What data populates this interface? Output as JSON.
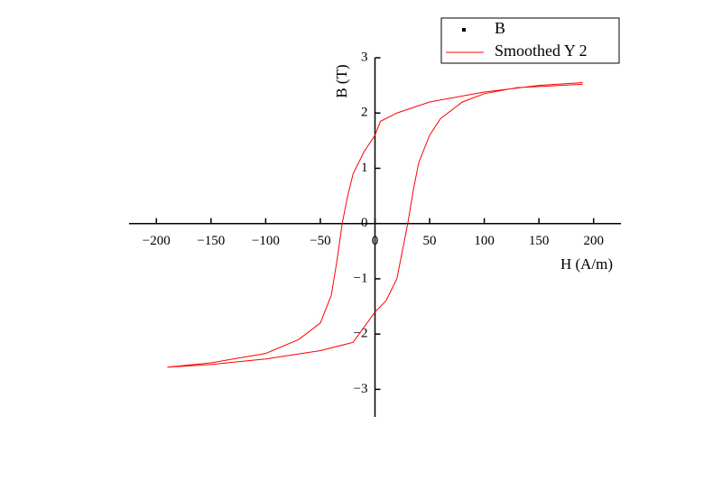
{
  "chart_data": {
    "type": "line",
    "x_label": "H (A/m)",
    "y_label": "B (T)",
    "xlim": [
      -225,
      225
    ],
    "ylim": [
      -3.5,
      3
    ],
    "xticks": [
      {
        "value": -200,
        "label": "−200"
      },
      {
        "value": -150,
        "label": "−150"
      },
      {
        "value": -100,
        "label": "−100"
      },
      {
        "value": -50,
        "label": "−50"
      },
      0,
      50,
      100,
      150,
      200
    ],
    "yticks": [
      {
        "value": -3,
        "label": "−3"
      },
      {
        "value": -2,
        "label": "−2"
      },
      {
        "value": -1,
        "label": "−1"
      },
      0,
      1,
      2,
      3
    ],
    "legend": [
      {
        "name": "B",
        "color": "#000000"
      },
      {
        "name": "Smoothed Y 2",
        "color": "#ff0000"
      }
    ],
    "series": [
      {
        "name": "Smoothed Y 2",
        "color": "#ff0000",
        "x": [
          190,
          150,
          100,
          50,
          20,
          5,
          0,
          -10,
          -20,
          -25,
          -30,
          -35,
          -40,
          -50,
          -70,
          -100,
          -150,
          -190,
          -150,
          -100,
          -50,
          -20,
          0,
          10,
          20,
          25,
          30,
          35,
          40,
          50,
          60,
          80,
          100,
          130,
          190
        ],
        "values": [
          2.55,
          2.5,
          2.38,
          2.2,
          2.0,
          1.85,
          1.6,
          1.3,
          0.9,
          0.5,
          0,
          -0.7,
          -1.3,
          -1.8,
          -2.1,
          -2.35,
          -2.52,
          -2.6,
          -2.55,
          -2.45,
          -2.3,
          -2.15,
          -1.6,
          -1.4,
          -1.0,
          -0.5,
          0,
          0.6,
          1.1,
          1.6,
          1.9,
          2.2,
          2.35,
          2.46,
          2.52
        ]
      }
    ]
  }
}
